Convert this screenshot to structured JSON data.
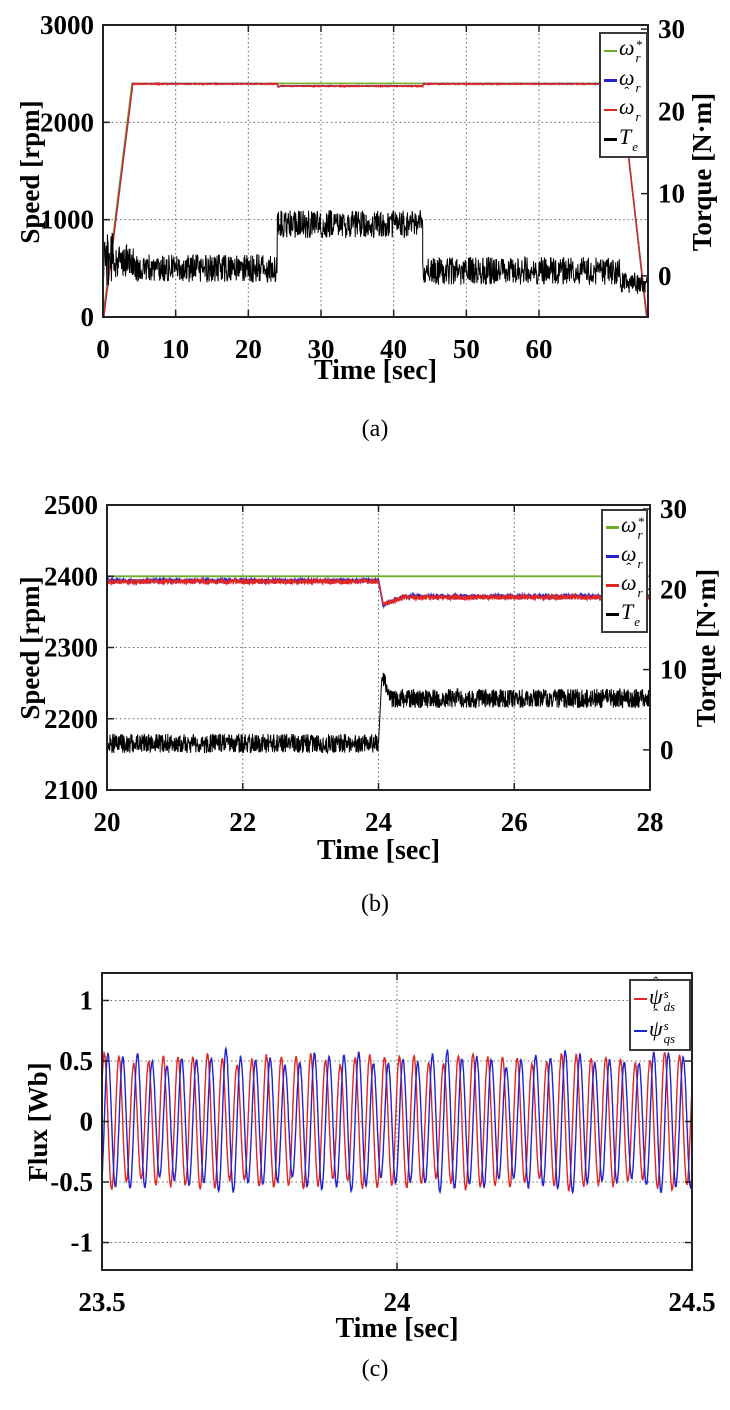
{
  "captions": {
    "a": "(a)",
    "b": "(b)",
    "c": "(c)"
  },
  "colors": {
    "reference_green": "#6fae2b",
    "measured_blue": "#2323cd",
    "estimated_red": "#e12723",
    "torque_black": "#000000",
    "grid": "#666666",
    "frame": "#222222"
  },
  "chart_data": [
    {
      "id": "a",
      "type": "line",
      "xlabel": "Time [sec]",
      "ylabel_left": "Speed [rpm]",
      "ylabel_right": "Torque [N·m]",
      "xlim": [
        0,
        75
      ],
      "ylim_left": [
        0,
        3000
      ],
      "ylim_right": [
        -5,
        30.5
      ],
      "xticks": [
        0,
        10,
        20,
        30,
        40,
        50,
        60
      ],
      "yticks_left": [
        0,
        1000,
        2000,
        3000
      ],
      "yticks_right": [
        0,
        10,
        20,
        30
      ],
      "grid": "dotted",
      "legend_position": "top-right",
      "segments_format": "[t_start, t_end, value_start, value_end, noise_amplitude]",
      "legend": {
        "entries": [
          {
            "name": "speed-reference",
            "base": "ω",
            "hat": false,
            "sup": "*",
            "sub": "r",
            "color": "#6fae2b"
          },
          {
            "name": "speed-measured",
            "base": "ω",
            "hat": false,
            "sup": "",
            "sub": "r",
            "color": "#2323cd"
          },
          {
            "name": "speed-estimated",
            "base": "ω",
            "hat": true,
            "sup": "",
            "sub": "r",
            "color": "#e12723"
          },
          {
            "name": "torque",
            "base": "T",
            "hat": false,
            "sup": "",
            "sub": "e",
            "color": "#000000"
          }
        ]
      },
      "series": [
        {
          "name": "omega_r_ref",
          "axis": "left",
          "color": "#6fae2b",
          "width": 1.6,
          "gen": "segments",
          "seed": 11,
          "step": 0.05,
          "segments": [
            [
              0,
              4,
              0,
              2400,
              0
            ],
            [
              4,
              71.2,
              2400,
              2400,
              0
            ],
            [
              71.2,
              74.8,
              2400,
              0,
              0
            ],
            [
              74.8,
              75,
              0,
              0,
              0
            ]
          ]
        },
        {
          "name": "omega_r",
          "axis": "left",
          "color": "#2323cd",
          "width": 1.5,
          "gen": "segments",
          "seed": 22,
          "step": 0.05,
          "segments": [
            [
              0,
              0.1,
              0,
              0,
              0
            ],
            [
              0.1,
              4.1,
              0,
              2396,
              3
            ],
            [
              4.1,
              24,
              2396,
              2396,
              3
            ],
            [
              24,
              24.1,
              2396,
              2363,
              0
            ],
            [
              24.1,
              24.4,
              2363,
              2374,
              2
            ],
            [
              24.4,
              44,
              2374,
              2374,
              3
            ],
            [
              44,
              44.15,
              2374,
              2397,
              2
            ],
            [
              44.15,
              71.2,
              2396,
              2396,
              3
            ],
            [
              71.2,
              74.85,
              2396,
              0,
              2
            ],
            [
              74.85,
              75,
              0,
              0,
              0
            ]
          ]
        },
        {
          "name": "omega_r_hat",
          "axis": "left",
          "color": "#e12723",
          "width": 1.3,
          "gen": "segments",
          "seed": 33,
          "step": 0.05,
          "segments": [
            [
              0,
              0.1,
              0,
              0,
              0
            ],
            [
              0.1,
              4.1,
              0,
              2394,
              5
            ],
            [
              4.1,
              24,
              2394,
              2394,
              5
            ],
            [
              24,
              24.1,
              2394,
              2362,
              2
            ],
            [
              24.1,
              24.4,
              2362,
              2372,
              4
            ],
            [
              24.4,
              44,
              2372,
              2372,
              5
            ],
            [
              44,
              44.15,
              2372,
              2395,
              3
            ],
            [
              44.15,
              71.2,
              2394,
              2394,
              5
            ],
            [
              71.2,
              74.85,
              2394,
              0,
              3
            ],
            [
              74.85,
              75,
              0,
              0,
              0
            ]
          ]
        },
        {
          "name": "T_e",
          "axis": "right",
          "color": "#000000",
          "width": 1.0,
          "gen": "segments",
          "seed": 44,
          "step": 0.05,
          "segments": [
            [
              0,
              0.3,
              0,
              5,
              2
            ],
            [
              0.3,
              1.5,
              2.0,
              2.0,
              3.2
            ],
            [
              1.5,
              4.2,
              1.8,
              1.8,
              2.0
            ],
            [
              4.2,
              24,
              0.9,
              0.9,
              1.7
            ],
            [
              24,
              44,
              6.3,
              6.3,
              1.7
            ],
            [
              44,
              71.2,
              0.6,
              0.6,
              1.7
            ],
            [
              71.2,
              74.6,
              -0.9,
              -0.9,
              1.3
            ],
            [
              74.6,
              75,
              -0.5,
              -0.5,
              0.5
            ]
          ]
        }
      ]
    },
    {
      "id": "b",
      "type": "line",
      "xlabel": "Time [sec]",
      "ylabel_left": "Speed [rpm]",
      "ylabel_right": "Torque [N·m]",
      "xlim": [
        20,
        28
      ],
      "ylim_left": [
        2100,
        2500
      ],
      "ylim_right": [
        -5,
        30.5
      ],
      "xticks": [
        20,
        22,
        24,
        26,
        28
      ],
      "yticks_left": [
        2100,
        2200,
        2300,
        2400,
        2500
      ],
      "yticks_right": [
        0,
        10,
        20,
        30
      ],
      "grid": "dotted",
      "legend_position": "top-right",
      "segments_format": "[t_start, t_end, value_start, value_end, noise_amplitude]",
      "legend": {
        "entries": [
          {
            "name": "speed-reference",
            "base": "ω",
            "hat": false,
            "sup": "*",
            "sub": "r",
            "color": "#6fae2b"
          },
          {
            "name": "speed-measured",
            "base": "ω",
            "hat": false,
            "sup": "",
            "sub": "r",
            "color": "#2323cd"
          },
          {
            "name": "speed-estimated",
            "base": "ω",
            "hat": true,
            "sup": "",
            "sub": "r",
            "color": "#e12723"
          },
          {
            "name": "torque",
            "base": "T",
            "hat": false,
            "sup": "",
            "sub": "e",
            "color": "#000000"
          }
        ]
      },
      "series": [
        {
          "name": "omega_r_ref",
          "axis": "left",
          "color": "#6fae2b",
          "width": 1.8,
          "gen": "segments",
          "seed": 55,
          "step": 0.01,
          "segments": [
            [
              20,
              28,
              2400,
              2400,
              0
            ]
          ]
        },
        {
          "name": "omega_r",
          "axis": "left",
          "color": "#2323cd",
          "width": 1.8,
          "gen": "segments",
          "seed": 66,
          "step": 0.004,
          "segments": [
            [
              20,
              24,
              2394,
              2394,
              1.6
            ],
            [
              24,
              24.07,
              2394,
              2359,
              0
            ],
            [
              24.07,
              24.35,
              2359,
              2371,
              1.5
            ],
            [
              24.35,
              28,
              2372,
              2372,
              1.6
            ]
          ]
        },
        {
          "name": "omega_r_hat",
          "axis": "left",
          "color": "#e12723",
          "width": 1.4,
          "gen": "segments",
          "seed": 77,
          "step": 0.004,
          "segments": [
            [
              20,
              24,
              2392.5,
              2392.5,
              3.5
            ],
            [
              24,
              24.07,
              2392,
              2361,
              1
            ],
            [
              24.07,
              24.35,
              2361,
              2369,
              3
            ],
            [
              24.35,
              28,
              2370.5,
              2370.5,
              3.5
            ]
          ]
        },
        {
          "name": "T_e",
          "axis": "right",
          "color": "#000000",
          "width": 1.0,
          "gen": "segments",
          "seed": 88,
          "step": 0.004,
          "segments": [
            [
              20,
              24,
              0.8,
              0.8,
              1.2
            ],
            [
              24,
              24.05,
              0.8,
              9.2,
              0
            ],
            [
              24.05,
              24.2,
              9.2,
              6.4,
              1.0
            ],
            [
              24.2,
              28,
              6.4,
              6.4,
              1.2
            ]
          ]
        }
      ]
    },
    {
      "id": "c",
      "type": "line",
      "xlabel": "Time [sec]",
      "ylabel_left": "Flux [Wb]",
      "ylabel_right": "",
      "xlim": [
        23.5,
        24.5
      ],
      "ylim_left": [
        -1.227,
        1.227
      ],
      "ylim_right": null,
      "xticks": [
        23.5,
        24,
        24.5
      ],
      "yticks_left": [
        -1,
        -0.5,
        0,
        0.5,
        1
      ],
      "yticks_right": null,
      "grid": "dotted",
      "legend_position": "top-right",
      "legend": {
        "entries": [
          {
            "name": "flux-ds-estimated",
            "base": "ψ",
            "hat": true,
            "sup": "s",
            "sub": "ds",
            "color": "#e12723"
          },
          {
            "name": "flux-qs-estimated",
            "base": "ψ",
            "hat": true,
            "sup": "s",
            "sub": "qs",
            "color": "#2323cd"
          }
        ]
      },
      "series": [
        {
          "name": "psi_ds_hat",
          "axis": "left",
          "color": "#e12723",
          "width": 1.4,
          "gen": "sine",
          "seed": 99,
          "step": 0.0004,
          "freq_hz": 40,
          "amplitude_wb": 0.52,
          "phase_rad": 0.6,
          "noise": 0.012,
          "amp_mod": [
            [
              6.1,
              0.06,
              2.0
            ],
            [
              11.7,
              0.05,
              0.5
            ]
          ]
        },
        {
          "name": "psi_qs_hat",
          "axis": "left",
          "color": "#2323cd",
          "width": 1.4,
          "gen": "sine",
          "seed": 111,
          "step": 0.0004,
          "freq_hz": 40,
          "amplitude_wb": 0.52,
          "phase_rad": -0.9708,
          "noise": 0.012,
          "amp_mod": [
            [
              5.3,
              0.08,
              0.8
            ],
            [
              13.7,
              0.06,
              2.2
            ]
          ]
        }
      ]
    }
  ]
}
